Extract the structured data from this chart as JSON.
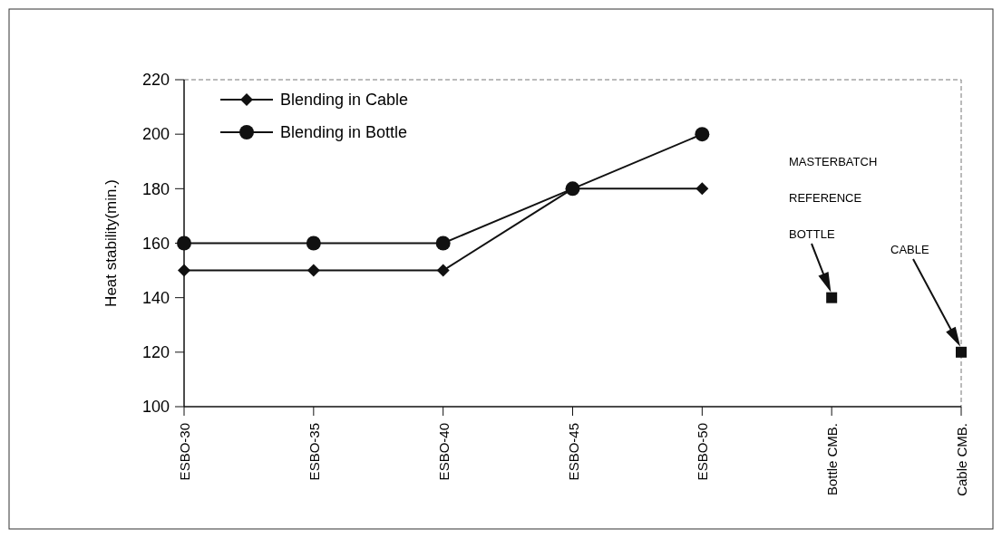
{
  "chart_data": {
    "type": "line",
    "ylabel": "Heat stability(min.)",
    "categories": [
      "ESBO-30",
      "ESBO-35",
      "ESBO-40",
      "ESBO-45",
      "ESBO-50",
      "Bottle CMB.",
      "Cable CMB."
    ],
    "series": [
      {
        "name": "Blending in Cable",
        "color": "#111111",
        "marker": "diamond",
        "values": [
          150,
          150,
          150,
          180,
          180,
          null,
          null
        ]
      },
      {
        "name": "Blending in Bottle",
        "color": "#111111",
        "marker": "circle",
        "values": [
          160,
          160,
          160,
          180,
          200,
          null,
          null
        ]
      },
      {
        "type": "scatter",
        "color": "#111111",
        "marker": "square",
        "values": [
          null,
          null,
          null,
          null,
          null,
          140,
          120
        ]
      }
    ],
    "ylim": [
      100,
      220
    ],
    "yticks": [
      100,
      120,
      140,
      160,
      180,
      200,
      220
    ],
    "grid": false,
    "legend": "top left",
    "annotations": [
      "MASTERBATCH",
      "REFERENCE",
      "BOTTLE",
      "CABLE"
    ]
  }
}
